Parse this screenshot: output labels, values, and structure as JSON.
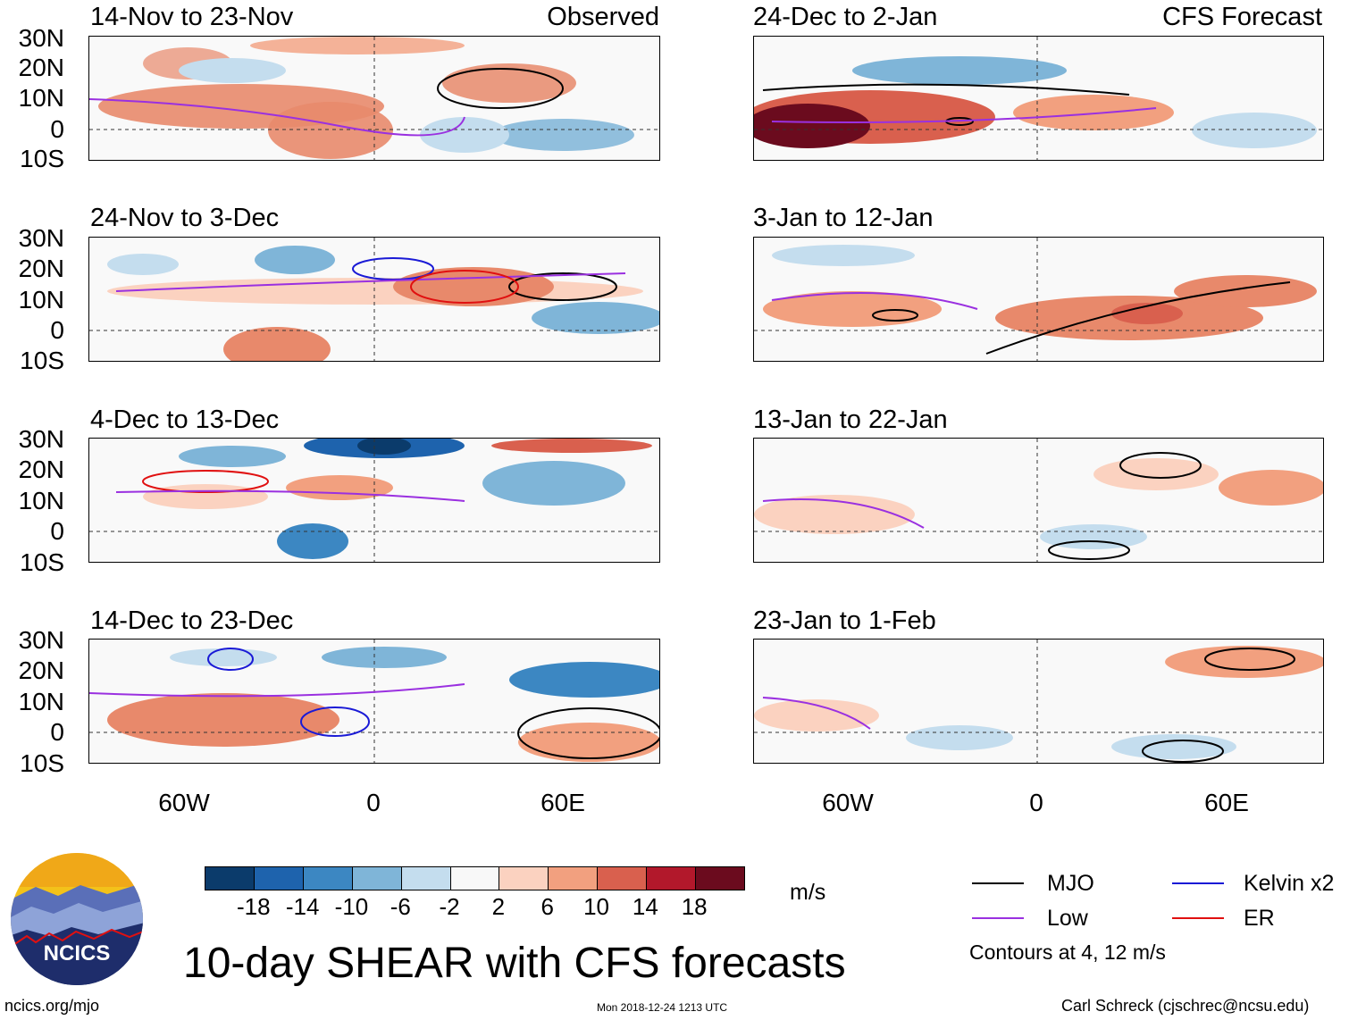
{
  "panels": {
    "left": [
      {
        "title": "14-Nov to 23-Nov",
        "label": "Observed"
      },
      {
        "title": "24-Nov to 3-Dec",
        "label": ""
      },
      {
        "title": "4-Dec to 13-Dec",
        "label": ""
      },
      {
        "title": "14-Dec to 23-Dec",
        "label": ""
      }
    ],
    "right": [
      {
        "title": "24-Dec to 2-Jan",
        "label": "CFS Forecast"
      },
      {
        "title": "3-Jan to 12-Jan",
        "label": ""
      },
      {
        "title": "13-Jan to 22-Jan",
        "label": ""
      },
      {
        "title": "23-Jan to 1-Feb",
        "label": ""
      }
    ]
  },
  "axes": {
    "lat_labels": [
      "30N",
      "20N",
      "10N",
      "0",
      "10S"
    ],
    "lon_labels": [
      "60W",
      "0",
      "60E"
    ]
  },
  "colorbar": {
    "colors": [
      "#0b3b6b",
      "#1e63ad",
      "#3c87c2",
      "#7fb5d8",
      "#c4ddee",
      "#f8f8f8",
      "#fbd2c0",
      "#f2a07f",
      "#d9604e",
      "#b2182b",
      "#6b0b1e"
    ],
    "ticks": [
      "-18",
      "-14",
      "-10",
      "-6",
      "-2",
      "2",
      "6",
      "10",
      "14",
      "18"
    ],
    "units": "m/s"
  },
  "title": "10-day SHEAR with CFS forecasts",
  "legend": {
    "items": [
      {
        "label": "MJO",
        "color": "#000000"
      },
      {
        "label": "Kelvin x2",
        "color": "#1a1ad6"
      },
      {
        "label": "Low",
        "color": "#9a30e0"
      },
      {
        "label": "ER",
        "color": "#e01010"
      }
    ],
    "note": "Contours at 4, 12 m/s"
  },
  "logo": {
    "text": "NCICS"
  },
  "footer": {
    "left": "ncics.org/mjo",
    "center": "Mon 2018-12-24 1213 UTC",
    "right": "Carl Schreck (cjschrec@ncsu.edu)"
  }
}
